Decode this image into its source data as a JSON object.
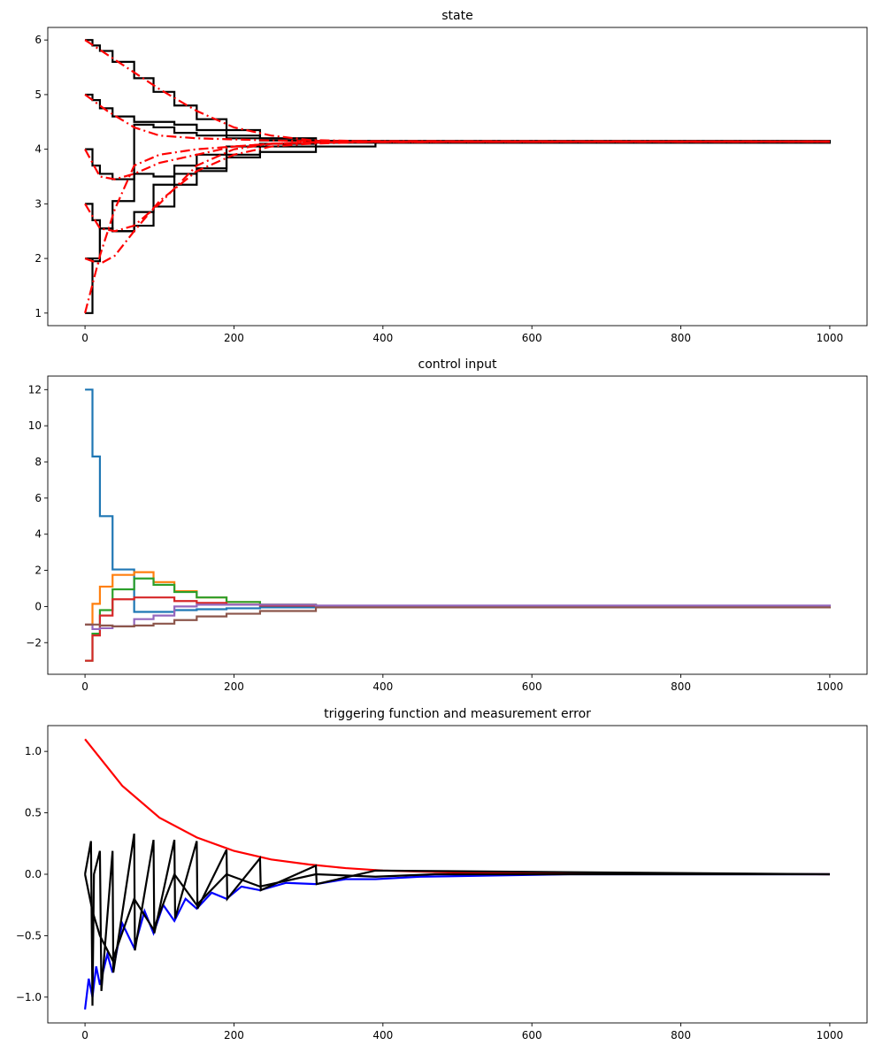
{
  "chart_data": [
    {
      "type": "line",
      "title": "state",
      "xlabel": "",
      "ylabel": "",
      "xlim": [
        -50,
        1050
      ],
      "ylim": [
        0.77,
        6.23
      ],
      "xticks": [
        0,
        200,
        400,
        600,
        800,
        1000
      ],
      "yticks": [
        1,
        2,
        3,
        4,
        5,
        6
      ],
      "grid": false,
      "series": [
        {
          "style": "step",
          "color": "#000000",
          "x": [
            0,
            10,
            20,
            37,
            66,
            92,
            120,
            150,
            190,
            235,
            310,
            390,
            1000
          ],
          "y": [
            1,
            2,
            2.55,
            3.05,
            3.55,
            3.5,
            3.55,
            3.6,
            3.85,
            3.95,
            4.05,
            4.12,
            4.14
          ]
        },
        {
          "style": "step",
          "color": "#000000",
          "x": [
            0,
            10,
            20,
            37,
            66,
            92,
            120,
            150,
            190,
            235,
            310,
            1000
          ],
          "y": [
            2,
            1.95,
            2.55,
            2.5,
            2.85,
            2.95,
            3.35,
            3.65,
            3.9,
            4.05,
            4.12,
            4.14
          ]
        },
        {
          "style": "step",
          "color": "#000000",
          "x": [
            0,
            10,
            20,
            37,
            66,
            92,
            120,
            150,
            190,
            235,
            310,
            1000
          ],
          "y": [
            3,
            2.7,
            2.55,
            2.5,
            2.6,
            3.35,
            3.7,
            3.9,
            4.05,
            4.1,
            4.13,
            4.14
          ]
        },
        {
          "style": "step",
          "color": "#000000",
          "x": [
            0,
            10,
            20,
            37,
            66,
            92,
            120,
            150,
            190,
            235,
            310,
            1000
          ],
          "y": [
            4,
            3.7,
            3.55,
            3.45,
            4.45,
            4.4,
            4.3,
            4.25,
            4.2,
            4.16,
            4.14,
            4.14
          ]
        },
        {
          "style": "step",
          "color": "#000000",
          "x": [
            0,
            10,
            20,
            37,
            66,
            92,
            120,
            150,
            190,
            235,
            310,
            1000
          ],
          "y": [
            5,
            4.9,
            4.75,
            4.6,
            4.5,
            4.5,
            4.45,
            4.35,
            4.25,
            4.2,
            4.15,
            4.14
          ]
        },
        {
          "style": "step",
          "color": "#000000",
          "x": [
            0,
            10,
            20,
            37,
            66,
            92,
            120,
            150,
            190,
            235,
            310,
            1000
          ],
          "y": [
            6,
            5.9,
            5.8,
            5.6,
            5.3,
            5.05,
            4.8,
            4.55,
            4.35,
            4.2,
            4.15,
            4.14
          ]
        },
        {
          "style": "dashdot",
          "color": "#ff0000",
          "x": [
            0,
            20,
            40,
            66,
            100,
            150,
            200,
            250,
            300,
            400,
            1000
          ],
          "y": [
            1,
            2.05,
            2.9,
            3.7,
            3.9,
            4.0,
            4.05,
            4.1,
            4.12,
            4.14,
            4.14
          ]
        },
        {
          "style": "dashdot",
          "color": "#ff0000",
          "x": [
            0,
            10,
            20,
            40,
            66,
            100,
            150,
            200,
            250,
            300,
            400,
            1000
          ],
          "y": [
            2,
            1.95,
            1.9,
            2.05,
            2.5,
            3.05,
            3.6,
            3.9,
            4.05,
            4.1,
            4.14,
            4.14
          ]
        },
        {
          "style": "dashdot",
          "color": "#ff0000",
          "x": [
            0,
            20,
            40,
            66,
            100,
            150,
            200,
            250,
            300,
            1000
          ],
          "y": [
            3,
            2.55,
            2.5,
            2.6,
            3.0,
            3.7,
            4.0,
            4.1,
            4.13,
            4.14
          ]
        },
        {
          "style": "dashdot",
          "color": "#ff0000",
          "x": [
            0,
            20,
            40,
            66,
            100,
            150,
            200,
            250,
            300,
            1000
          ],
          "y": [
            4,
            3.5,
            3.45,
            3.55,
            3.75,
            3.9,
            4.05,
            4.1,
            4.13,
            4.14
          ]
        },
        {
          "style": "dashdot",
          "color": "#ff0000",
          "x": [
            0,
            30,
            66,
            100,
            150,
            200,
            250,
            300,
            1000
          ],
          "y": [
            5,
            4.7,
            4.4,
            4.25,
            4.2,
            4.18,
            4.16,
            4.15,
            4.14
          ]
        },
        {
          "style": "dashdot",
          "color": "#ff0000",
          "x": [
            0,
            50,
            100,
            150,
            200,
            250,
            300,
            400,
            1000
          ],
          "y": [
            6,
            5.55,
            5.1,
            4.7,
            4.4,
            4.25,
            4.17,
            4.14,
            4.14
          ]
        }
      ]
    },
    {
      "type": "line",
      "title": "control input",
      "xlabel": "",
      "ylabel": "",
      "xlim": [
        -50,
        1050
      ],
      "ylim": [
        -3.75,
        12.75
      ],
      "xticks": [
        0,
        200,
        400,
        600,
        800,
        1000
      ],
      "yticks": [
        -2,
        0,
        2,
        4,
        6,
        8,
        10,
        12
      ],
      "grid": false,
      "series": [
        {
          "style": "step",
          "color": "#1f77b4",
          "x": [
            0,
            10,
            20,
            37,
            66,
            92,
            120,
            150,
            190,
            235,
            310,
            1000
          ],
          "y": [
            12,
            8.3,
            5.0,
            2.05,
            -0.3,
            -0.3,
            -0.2,
            -0.15,
            -0.1,
            -0.05,
            0,
            0
          ]
        },
        {
          "style": "step",
          "color": "#ff7f0e",
          "x": [
            0,
            10,
            20,
            37,
            66,
            92,
            120,
            150,
            190,
            235,
            310,
            1000
          ],
          "y": [
            -1,
            0.15,
            1.1,
            1.75,
            1.9,
            1.35,
            0.85,
            0.5,
            0.25,
            0.1,
            0,
            0
          ]
        },
        {
          "style": "step",
          "color": "#2ca02c",
          "x": [
            0,
            10,
            20,
            37,
            66,
            92,
            120,
            150,
            190,
            235,
            310,
            1000
          ],
          "y": [
            -3,
            -1.5,
            -0.2,
            0.95,
            1.55,
            1.2,
            0.8,
            0.5,
            0.25,
            0.1,
            0,
            0
          ]
        },
        {
          "style": "step",
          "color": "#d62728",
          "x": [
            0,
            10,
            20,
            37,
            66,
            92,
            120,
            150,
            190,
            235,
            310,
            1000
          ],
          "y": [
            -3,
            -1.6,
            -0.5,
            0.4,
            0.5,
            0.5,
            0.3,
            0.2,
            0.1,
            0.05,
            0,
            0
          ]
        },
        {
          "style": "step",
          "color": "#9467bd",
          "x": [
            0,
            10,
            20,
            37,
            66,
            92,
            120,
            150,
            190,
            235,
            310,
            1000
          ],
          "y": [
            -1,
            -1.25,
            -1.2,
            -1.1,
            -0.7,
            -0.5,
            0.0,
            0.1,
            0.1,
            0.1,
            0.05,
            0
          ]
        },
        {
          "style": "step",
          "color": "#8c564b",
          "x": [
            0,
            10,
            20,
            37,
            66,
            92,
            120,
            150,
            190,
            235,
            310,
            1000
          ],
          "y": [
            -1,
            -1.0,
            -1.05,
            -1.1,
            -1.05,
            -0.95,
            -0.75,
            -0.55,
            -0.4,
            -0.25,
            -0.05,
            0
          ]
        }
      ]
    },
    {
      "type": "line",
      "title": "triggering function and measurement error",
      "xlabel": "",
      "ylabel": "",
      "xlim": [
        -50,
        1050
      ],
      "ylim": [
        -1.21,
        1.21
      ],
      "xticks": [
        0,
        200,
        400,
        600,
        800,
        1000
      ],
      "yticks": [
        -1.0,
        -0.5,
        0.0,
        0.5,
        1.0
      ],
      "grid": false,
      "series": [
        {
          "style": "line",
          "color": "#ff0000",
          "x": [
            0,
            50,
            100,
            150,
            200,
            250,
            300,
            350,
            400,
            500,
            600,
            700,
            800,
            1000
          ],
          "y": [
            1.1,
            0.72,
            0.46,
            0.3,
            0.19,
            0.12,
            0.08,
            0.05,
            0.03,
            0.014,
            0.006,
            0.002,
            0.001,
            0
          ]
        },
        {
          "style": "line",
          "color": "#0000ff",
          "x": [
            0,
            5,
            10,
            15,
            20,
            30,
            37,
            50,
            66,
            80,
            92,
            105,
            120,
            135,
            150,
            170,
            190,
            210,
            235,
            270,
            310,
            350,
            390,
            450,
            550,
            650,
            1000
          ],
          "y": [
            -1.1,
            -0.85,
            -1.0,
            -0.75,
            -0.9,
            -0.65,
            -0.8,
            -0.4,
            -0.6,
            -0.3,
            -0.48,
            -0.25,
            -0.38,
            -0.2,
            -0.28,
            -0.15,
            -0.2,
            -0.1,
            -0.13,
            -0.07,
            -0.08,
            -0.04,
            -0.04,
            -0.02,
            -0.01,
            0,
            0
          ]
        },
        {
          "style": "line",
          "color": "#000000",
          "x": [
            0,
            8,
            10,
            12,
            20,
            22,
            37,
            38,
            66,
            67,
            92,
            93,
            120,
            121,
            150,
            151,
            190,
            191,
            235,
            236,
            310,
            311,
            390,
            1000
          ],
          "y": [
            0,
            0.27,
            -1.07,
            0,
            0.19,
            -0.95,
            0.19,
            -0.8,
            0.33,
            -0.62,
            0.28,
            -0.48,
            0.28,
            -0.36,
            0.27,
            -0.28,
            0.2,
            -0.2,
            0.13,
            -0.13,
            0.07,
            -0.08,
            0.03,
            0
          ]
        },
        {
          "style": "line",
          "color": "#000000",
          "x": [
            0,
            10,
            20,
            37,
            66,
            92,
            120,
            150,
            190,
            235,
            310,
            390,
            470,
            550,
            1000
          ],
          "y": [
            0,
            -0.3,
            -0.5,
            -0.7,
            -0.2,
            -0.45,
            0,
            -0.25,
            0,
            -0.1,
            0,
            -0.02,
            0,
            0,
            0
          ]
        }
      ]
    }
  ]
}
